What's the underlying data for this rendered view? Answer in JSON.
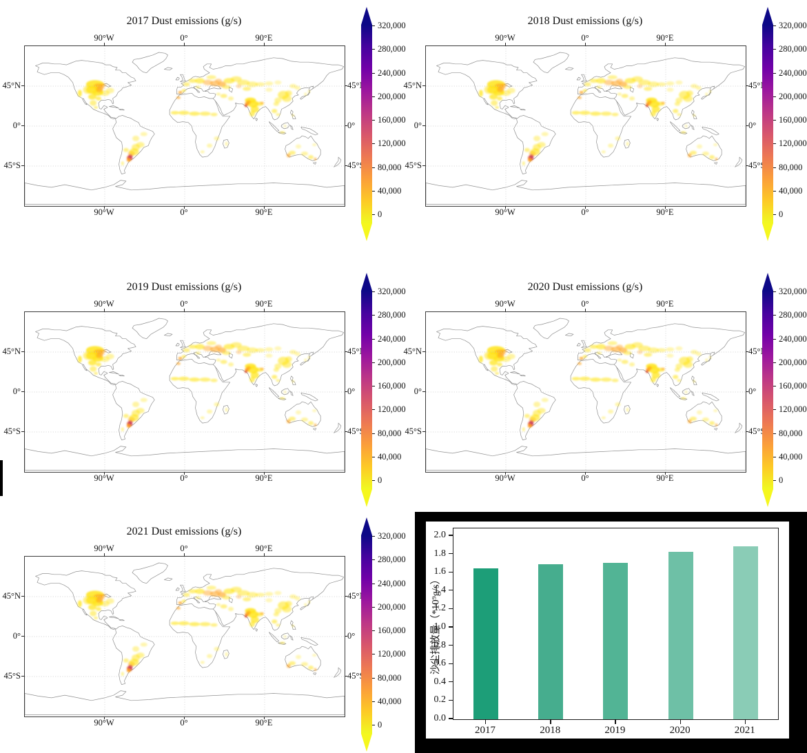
{
  "figure": {
    "background": "#ffffff",
    "panel_background": "#000000"
  },
  "maps": {
    "titles": [
      "2017 Dust emissions (g/s)",
      "2018 Dust emissions (g/s)",
      "2019 Dust emissions (g/s)",
      "2020 Dust emissions (g/s)",
      "2021 Dust emissions (g/s)"
    ],
    "years": [
      "2017",
      "2018",
      "2019",
      "2020",
      "2021"
    ],
    "lon_ticks": [
      "90°W",
      "0°",
      "90°E"
    ],
    "lat_ticks": [
      "45°N",
      "0°",
      "45°S"
    ]
  },
  "colorbar": {
    "ticks": [
      "0",
      "40,000",
      "80,000",
      "120,000",
      "160,000",
      "200,000",
      "240,000",
      "280,000",
      "320,000"
    ],
    "gradient": [
      "#f0f921",
      "#fdca26",
      "#fb9f3a",
      "#ed7953",
      "#d8576b",
      "#bd3786",
      "#9c179e",
      "#7201a8",
      "#46039f",
      "#0d0887"
    ],
    "arrow_top_color": "#0d0887",
    "arrow_bottom_color": "#f5f71e"
  },
  "bar_chart": {
    "ylabel": "沙尘排放量（*10⁹g/s）",
    "categories": [
      "2017",
      "2018",
      "2019",
      "2020",
      "2021"
    ],
    "values": [
      1.65,
      1.69,
      1.71,
      1.83,
      1.89
    ],
    "bar_colors": [
      "#1d9e78",
      "#46ad8e",
      "#52b495",
      "#6ec0a6",
      "#8accb6"
    ],
    "ytick_labels": [
      "0.0",
      "0.2",
      "0.4",
      "0.6",
      "0.8",
      "1.0",
      "1.2",
      "1.4",
      "1.6",
      "1.8",
      "2.0"
    ]
  },
  "chart_data": [
    {
      "type": "heatmap",
      "title": "2017 Dust emissions (g/s)",
      "units": "g/s",
      "x_ticks": [
        "90°W",
        "0°",
        "90°E"
      ],
      "y_ticks": [
        "45°N",
        "0°",
        "45°S"
      ],
      "colorbar_ticks": [
        0,
        40000,
        80000,
        120000,
        160000,
        200000,
        240000,
        280000,
        320000
      ],
      "colorbar_colormap": "plasma-reversed (yellow low → navy high)",
      "hot_regions": [
        "US Great Plains",
        "Argentina Pampas (magenta hotspot)",
        "Ukraine / southern Russia",
        "Sahel",
        "NW India / Pakistan border",
        "eastern China",
        "southern Australia"
      ]
    },
    {
      "type": "heatmap",
      "title": "2018 Dust emissions (g/s)",
      "units": "g/s",
      "x_ticks": [
        "90°W",
        "0°",
        "90°E"
      ],
      "y_ticks": [
        "45°N",
        "0°",
        "45°S"
      ],
      "colorbar_ticks": [
        0,
        40000,
        80000,
        120000,
        160000,
        200000,
        240000,
        280000,
        320000
      ]
    },
    {
      "type": "heatmap",
      "title": "2019 Dust emissions (g/s)",
      "units": "g/s",
      "x_ticks": [
        "90°W",
        "0°",
        "90°E"
      ],
      "y_ticks": [
        "45°N",
        "0°",
        "45°S"
      ],
      "colorbar_ticks": [
        0,
        40000,
        80000,
        120000,
        160000,
        200000,
        240000,
        280000,
        320000
      ]
    },
    {
      "type": "heatmap",
      "title": "2020 Dust emissions (g/s)",
      "units": "g/s",
      "x_ticks": [
        "90°W",
        "0°",
        "90°E"
      ],
      "y_ticks": [
        "45°N",
        "0°",
        "45°S"
      ],
      "colorbar_ticks": [
        0,
        40000,
        80000,
        120000,
        160000,
        200000,
        240000,
        280000,
        320000
      ]
    },
    {
      "type": "heatmap",
      "title": "2021 Dust emissions (g/s)",
      "units": "g/s",
      "x_ticks": [
        "90°W",
        "0°",
        "90°E"
      ],
      "y_ticks": [
        "45°N",
        "0°",
        "45°S"
      ],
      "colorbar_ticks": [
        0,
        40000,
        80000,
        120000,
        160000,
        200000,
        240000,
        280000,
        320000
      ]
    },
    {
      "type": "bar",
      "categories": [
        "2017",
        "2018",
        "2019",
        "2020",
        "2021"
      ],
      "values": [
        1.65,
        1.69,
        1.71,
        1.83,
        1.89
      ],
      "title": "",
      "xlabel": "",
      "ylabel": "沙尘排放量（*10⁹g/s）",
      "ylim": [
        0,
        2.0
      ],
      "ytick_step": 0.2,
      "bar_colors": [
        "#1d9e78",
        "#46ad8e",
        "#52b495",
        "#6ec0a6",
        "#8accb6"
      ],
      "grid": false,
      "legend_position": "none"
    }
  ]
}
